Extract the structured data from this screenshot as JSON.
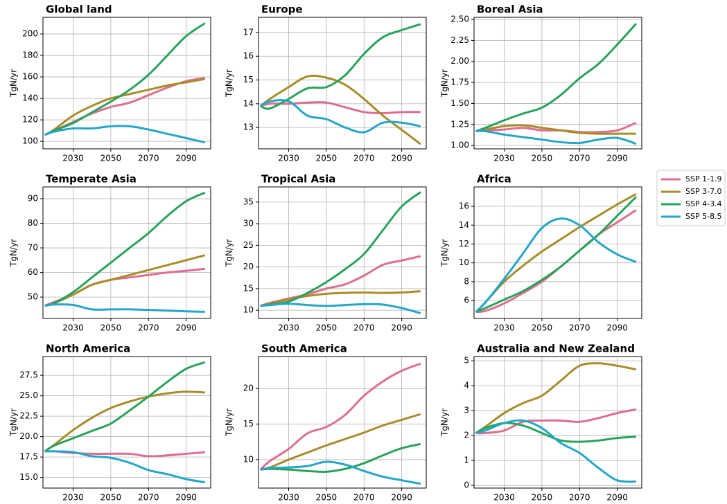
{
  "chart_data": [
    {
      "type": "line",
      "title": "Global land",
      "ylabel": "TgN/yr",
      "x": [
        2015,
        2020,
        2030,
        2040,
        2050,
        2060,
        2070,
        2080,
        2090,
        2100
      ],
      "xlim": [
        2014,
        2103
      ],
      "xticks": [
        2030,
        2050,
        2070,
        2090
      ],
      "ylim": [
        93,
        215.5
      ],
      "yticks": [
        100,
        120,
        140,
        160,
        180,
        200
      ],
      "grid": true,
      "legend": "right",
      "series": [
        {
          "name": "SSP 1-1.9",
          "color": "#dd6e8c",
          "values": [
            106,
            110,
            118,
            126,
            132,
            136,
            143,
            150,
            156,
            159
          ]
        },
        {
          "name": "SSP 3-7.0",
          "color": "#a88c2a",
          "values": [
            106,
            111,
            124,
            133,
            140,
            144,
            148,
            152,
            155,
            158
          ]
        },
        {
          "name": "SSP 4-3.4",
          "color": "#27a35a",
          "values": [
            106,
            110,
            117,
            127,
            137,
            148,
            162,
            180,
            198,
            210
          ]
        },
        {
          "name": "SSP 5-8.5",
          "color": "#23a6c9",
          "values": [
            106,
            109,
            112,
            112,
            114,
            114,
            111,
            107,
            103,
            99
          ]
        }
      ]
    },
    {
      "type": "line",
      "title": "Europe",
      "ylabel": "TgN/yr",
      "x": [
        2015,
        2020,
        2030,
        2040,
        2050,
        2060,
        2070,
        2080,
        2090,
        2100
      ],
      "xlim": [
        2014,
        2103
      ],
      "xticks": [
        2030,
        2050,
        2070,
        2090
      ],
      "ylim": [
        12.1,
        17.64
      ],
      "yticks": [
        13,
        14,
        15,
        16,
        17
      ],
      "grid": true,
      "series": [
        {
          "name": "SSP 1-1.9",
          "color": "#dd6e8c",
          "values": [
            13.9,
            14.0,
            14.0,
            14.05,
            14.05,
            13.85,
            13.65,
            13.6,
            13.65,
            13.65
          ]
        },
        {
          "name": "SSP 3-7.0",
          "color": "#a88c2a",
          "values": [
            13.9,
            14.2,
            14.7,
            15.15,
            15.1,
            14.8,
            14.2,
            13.5,
            12.9,
            12.3
          ]
        },
        {
          "name": "SSP 4-3.4",
          "color": "#27a35a",
          "values": [
            13.9,
            13.8,
            14.2,
            14.65,
            14.7,
            15.2,
            16.1,
            16.8,
            17.1,
            17.35
          ]
        },
        {
          "name": "SSP 5-8.5",
          "color": "#23a6c9",
          "values": [
            13.9,
            14.1,
            14.1,
            13.5,
            13.35,
            13.0,
            12.8,
            13.2,
            13.2,
            13.05
          ]
        }
      ]
    },
    {
      "type": "line",
      "title": "Boreal Asia",
      "ylabel": "TgN/yr",
      "x": [
        2015,
        2020,
        2030,
        2040,
        2050,
        2060,
        2070,
        2080,
        2090,
        2100
      ],
      "xlim": [
        2014,
        2103
      ],
      "xticks": [
        2030,
        2050,
        2070,
        2090
      ],
      "ylim": [
        0.96,
        2.525
      ],
      "yticks": [
        {
          "value": 1,
          "label": "1.00"
        },
        {
          "value": 1.25,
          "label": "1.25"
        },
        {
          "value": 1.5,
          "label": "1.50"
        },
        {
          "value": 1.75,
          "label": "1.75"
        },
        {
          "value": 2,
          "label": "2.00"
        },
        {
          "value": 2.25,
          "label": "2.25"
        },
        {
          "value": 2.5,
          "label": "2.50"
        }
      ],
      "grid": true,
      "series": [
        {
          "name": "SSP 1-1.9",
          "color": "#dd6e8c",
          "values": [
            1.17,
            1.18,
            1.19,
            1.21,
            1.18,
            1.18,
            1.16,
            1.16,
            1.18,
            1.27
          ]
        },
        {
          "name": "SSP 3-7.0",
          "color": "#a88c2a",
          "values": [
            1.17,
            1.19,
            1.23,
            1.24,
            1.21,
            1.18,
            1.15,
            1.14,
            1.14,
            1.14
          ]
        },
        {
          "name": "SSP 4-3.4",
          "color": "#27a35a",
          "values": [
            1.17,
            1.21,
            1.3,
            1.38,
            1.45,
            1.6,
            1.8,
            1.97,
            2.2,
            2.45
          ]
        },
        {
          "name": "SSP 5-8.5",
          "color": "#23a6c9",
          "values": [
            1.17,
            1.17,
            1.13,
            1.1,
            1.07,
            1.04,
            1.03,
            1.07,
            1.09,
            1.02
          ]
        }
      ]
    },
    {
      "type": "line",
      "title": "Temperate Asia",
      "ylabel": "TgN/yr",
      "x": [
        2015,
        2020,
        2030,
        2040,
        2050,
        2060,
        2070,
        2080,
        2090,
        2100
      ],
      "xlim": [
        2014,
        2103
      ],
      "xticks": [
        2030,
        2050,
        2070,
        2090
      ],
      "ylim": [
        41.3,
        94.8
      ],
      "yticks": [
        50,
        60,
        70,
        80,
        90
      ],
      "grid": true,
      "series": [
        {
          "name": "SSP 1-1.9",
          "color": "#dd6e8c",
          "values": [
            46.5,
            48,
            51,
            55,
            57,
            58,
            59,
            60,
            60.7,
            61.5
          ]
        },
        {
          "name": "SSP 3-7.0",
          "color": "#a88c2a",
          "values": [
            46.5,
            47.5,
            51,
            55,
            57,
            59,
            61,
            63,
            65,
            67
          ]
        },
        {
          "name": "SSP 4-3.4",
          "color": "#27a35a",
          "values": [
            46.5,
            47.5,
            52,
            58,
            64,
            70,
            76,
            83,
            89,
            92.5
          ]
        },
        {
          "name": "SSP 5-8.5",
          "color": "#23a6c9",
          "values": [
            46.5,
            47,
            46.8,
            45,
            45,
            45,
            44.8,
            44.5,
            44.2,
            44
          ]
        }
      ]
    },
    {
      "type": "line",
      "title": "Tropical Asia",
      "ylabel": "TgN/yr",
      "x": [
        2015,
        2020,
        2030,
        2040,
        2050,
        2060,
        2070,
        2080,
        2090,
        2100
      ],
      "xlim": [
        2014,
        2103
      ],
      "xticks": [
        2030,
        2050,
        2070,
        2090
      ],
      "ylim": [
        8.1,
        38.5
      ],
      "yticks": [
        10,
        15,
        20,
        25,
        30,
        35
      ],
      "grid": true,
      "series": [
        {
          "name": "SSP 1-1.9",
          "color": "#dd6e8c",
          "values": [
            11,
            11.7,
            12.7,
            13.7,
            15,
            16,
            18,
            20.5,
            21.5,
            22.5
          ]
        },
        {
          "name": "SSP 3-7.0",
          "color": "#a88c2a",
          "values": [
            11,
            11.5,
            12.5,
            13.3,
            13.8,
            14,
            14.1,
            14,
            14.1,
            14.4
          ]
        },
        {
          "name": "SSP 4-3.4",
          "color": "#27a35a",
          "values": [
            11,
            11.3,
            12,
            14,
            16.5,
            19.5,
            23,
            28.5,
            34,
            37.3
          ]
        },
        {
          "name": "SSP 5-8.5",
          "color": "#23a6c9",
          "values": [
            11,
            11.2,
            11.5,
            11.2,
            11,
            11.2,
            11.4,
            11.3,
            10.5,
            9.3
          ]
        }
      ]
    },
    {
      "type": "line",
      "title": "Africa",
      "ylabel": "TgN/yr",
      "x": [
        2015,
        2020,
        2030,
        2040,
        2050,
        2060,
        2070,
        2080,
        2090,
        2100
      ],
      "xlim": [
        2014,
        2103
      ],
      "xticks": [
        2030,
        2050,
        2070,
        2090
      ],
      "ylim": [
        4.1,
        18.06
      ],
      "yticks": [
        6,
        8,
        10,
        12,
        14,
        16
      ],
      "grid": true,
      "series": [
        {
          "name": "SSP 1-1.9",
          "color": "#dd6e8c",
          "values": [
            4.8,
            4.9,
            5.7,
            6.8,
            8,
            9.6,
            11.3,
            13,
            14.3,
            15.6
          ]
        },
        {
          "name": "SSP 3-7.0",
          "color": "#a88c2a",
          "values": [
            4.8,
            5.8,
            8,
            9.7,
            11.2,
            12.5,
            13.8,
            15,
            16.2,
            17.3
          ]
        },
        {
          "name": "SSP 4-3.4",
          "color": "#27a35a",
          "values": [
            4.8,
            5.2,
            6.1,
            7,
            8.2,
            9.6,
            11.3,
            13,
            15,
            17
          ]
        },
        {
          "name": "SSP 5-8.5",
          "color": "#23a6c9",
          "values": [
            4.8,
            5.8,
            8.3,
            11,
            13.7,
            14.7,
            14,
            12.2,
            10.9,
            10.1
          ]
        }
      ]
    },
    {
      "type": "line",
      "title": "North America",
      "ylabel": "TgN/yr",
      "x": [
        2015,
        2020,
        2030,
        2040,
        2050,
        2060,
        2070,
        2080,
        2090,
        2100
      ],
      "xlim": [
        2014,
        2103
      ],
      "xticks": [
        2030,
        2050,
        2070,
        2090
      ],
      "ylim": [
        13.7,
        29.8
      ],
      "yticks": [
        {
          "value": 15,
          "label": "15.0"
        },
        17.5,
        {
          "value": 20,
          "label": "20.0"
        },
        22.5,
        {
          "value": 25,
          "label": "25.0"
        },
        27.5
      ],
      "grid": true,
      "series": [
        {
          "name": "SSP 1-1.9",
          "color": "#dd6e8c",
          "values": [
            18.2,
            18.2,
            18.0,
            17.9,
            17.9,
            17.9,
            17.6,
            17.7,
            17.9,
            18.1
          ]
        },
        {
          "name": "SSP 3-7.0",
          "color": "#a88c2a",
          "values": [
            18.2,
            19.0,
            20.8,
            22.3,
            23.5,
            24.3,
            24.9,
            25.3,
            25.5,
            25.4
          ]
        },
        {
          "name": "SSP 4-3.4",
          "color": "#27a35a",
          "values": [
            18.2,
            18.9,
            19.8,
            20.7,
            21.6,
            23.2,
            24.9,
            26.7,
            28.3,
            29.1
          ]
        },
        {
          "name": "SSP 5-8.5",
          "color": "#23a6c9",
          "values": [
            18.2,
            18.2,
            18.1,
            17.6,
            17.4,
            16.8,
            15.9,
            15.4,
            14.8,
            14.4
          ]
        }
      ]
    },
    {
      "type": "line",
      "title": "South America",
      "ylabel": "TgN/yr",
      "x": [
        2015,
        2020,
        2030,
        2040,
        2050,
        2060,
        2070,
        2080,
        2090,
        2100
      ],
      "xlim": [
        2014,
        2103
      ],
      "xticks": [
        2030,
        2050,
        2070,
        2090
      ],
      "ylim": [
        6,
        24.5
      ],
      "yticks": [
        10,
        15,
        20
      ],
      "grid": true,
      "series": [
        {
          "name": "SSP 1-1.9",
          "color": "#dd6e8c",
          "values": [
            8.6,
            9.8,
            11.5,
            13.7,
            14.6,
            16.3,
            19,
            21,
            22.5,
            23.5
          ]
        },
        {
          "name": "SSP 3-7.0",
          "color": "#a88c2a",
          "values": [
            8.6,
            8.9,
            10,
            11,
            12,
            12.9,
            13.8,
            14.8,
            15.6,
            16.4
          ]
        },
        {
          "name": "SSP 4-3.4",
          "color": "#27a35a",
          "values": [
            8.6,
            8.7,
            8.6,
            8.4,
            8.3,
            8.7,
            9.5,
            10.6,
            11.6,
            12.2
          ]
        },
        {
          "name": "SSP 5-8.5",
          "color": "#23a6c9",
          "values": [
            8.6,
            8.8,
            8.9,
            9.1,
            9.7,
            9.3,
            8.4,
            7.6,
            7.1,
            6.6
          ]
        }
      ]
    },
    {
      "type": "line",
      "title": "Australia and New Zealand",
      "ylabel": "TgN/yr",
      "x": [
        2015,
        2020,
        2030,
        2040,
        2050,
        2060,
        2070,
        2080,
        2090,
        2100
      ],
      "xlim": [
        2014,
        2103
      ],
      "xticks": [
        2030,
        2050,
        2070,
        2090
      ],
      "ylim": [
        -0.11,
        5.17
      ],
      "yticks": [
        0,
        1,
        2,
        3,
        4,
        5
      ],
      "grid": true,
      "series": [
        {
          "name": "SSP 1-1.9",
          "color": "#dd6e8c",
          "values": [
            2.1,
            2.1,
            2.2,
            2.55,
            2.6,
            2.6,
            2.55,
            2.7,
            2.9,
            3.05
          ]
        },
        {
          "name": "SSP 3-7.0",
          "color": "#a88c2a",
          "values": [
            2.1,
            2.35,
            2.9,
            3.3,
            3.6,
            4.2,
            4.8,
            4.9,
            4.8,
            4.65
          ]
        },
        {
          "name": "SSP 4-3.4",
          "color": "#27a35a",
          "values": [
            2.1,
            2.3,
            2.5,
            2.4,
            2.1,
            1.8,
            1.75,
            1.8,
            1.9,
            1.95
          ]
        },
        {
          "name": "SSP 5-8.5",
          "color": "#23a6c9",
          "values": [
            2.1,
            2.2,
            2.5,
            2.6,
            2.3,
            1.7,
            1.3,
            0.7,
            0.2,
            0.15
          ]
        }
      ]
    }
  ]
}
